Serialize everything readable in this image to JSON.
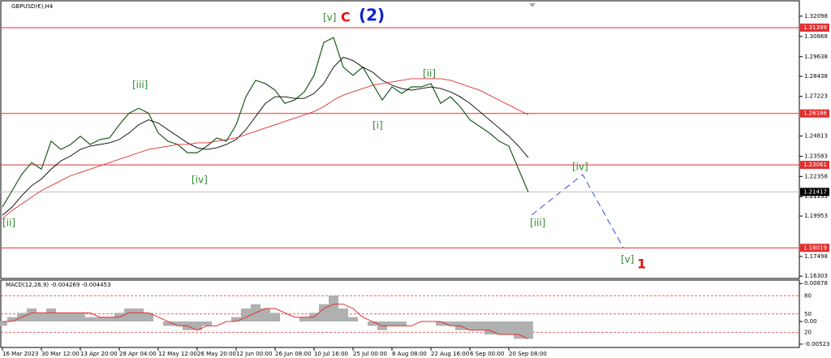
{
  "chart_data": {
    "type": "line",
    "title": "GBPUSD(€),H4",
    "categories": [
      "16 Mar 2023",
      null,
      null,
      null,
      "30 Mar 12:00",
      null,
      null,
      null,
      "13 Apr 20:00",
      null,
      null,
      null,
      "28 Apr 04:00",
      null,
      null,
      null,
      "12 May 12:00",
      null,
      null,
      null,
      "26 May 20:00",
      null,
      null,
      null,
      "12 Jun 00:00",
      null,
      null,
      null,
      "26 Jun 08:00",
      null,
      null,
      null,
      "10 Jul 16:00",
      null,
      null,
      null,
      "25 Jul 00:00",
      null,
      null,
      null,
      "8 Aug 08:00",
      null,
      null,
      null,
      "22 Aug 16:00",
      null,
      null,
      null,
      "6 Sep 00:00",
      null,
      null,
      null,
      "20 Sep 08:00",
      null,
      null
    ],
    "series": [
      {
        "color": "#1a5c1a",
        "values": [
          1.205,
          1.215,
          1.225,
          1.232,
          1.228,
          1.245,
          1.24,
          1.243,
          1.248,
          1.243,
          1.246,
          1.247,
          1.255,
          1.262,
          1.265,
          1.262,
          1.25,
          1.245,
          1.243,
          1.238,
          1.238,
          1.242,
          1.247,
          1.245,
          1.255,
          1.272,
          1.282,
          1.28,
          1.276,
          1.268,
          1.27,
          1.275,
          1.285,
          1.305,
          1.308,
          1.29,
          1.285,
          1.29,
          1.28,
          1.27,
          1.278,
          1.274,
          1.278,
          1.278,
          1.28,
          1.268,
          1.272,
          1.266,
          1.258,
          1.254,
          1.25,
          1.245,
          1.242,
          1.228,
          1.214
        ]
      },
      {
        "color": "#000000",
        "values": [
          1.2,
          1.205,
          1.212,
          1.218,
          1.222,
          1.228,
          1.233,
          1.236,
          1.24,
          1.242,
          1.243,
          1.244,
          1.246,
          1.25,
          1.255,
          1.258,
          1.256,
          1.252,
          1.248,
          1.244,
          1.241,
          1.24,
          1.241,
          1.243,
          1.246,
          1.252,
          1.26,
          1.268,
          1.272,
          1.272,
          1.271,
          1.271,
          1.274,
          1.28,
          1.29,
          1.296,
          1.294,
          1.29,
          1.287,
          1.282,
          1.279,
          1.277,
          1.276,
          1.277,
          1.278,
          1.277,
          1.275,
          1.272,
          1.268,
          1.263,
          1.258,
          1.253,
          1.248,
          1.242,
          1.235
        ]
      },
      {
        "color": "#e03030",
        "values": [
          1.198,
          1.203,
          1.207,
          1.211,
          1.215,
          1.218,
          1.221,
          1.224,
          1.226,
          1.228,
          1.23,
          1.232,
          1.234,
          1.236,
          1.238,
          1.24,
          1.241,
          1.242,
          1.243,
          1.243,
          1.244,
          1.244,
          1.245,
          1.246,
          1.247,
          1.249,
          1.251,
          1.253,
          1.255,
          1.257,
          1.259,
          1.261,
          1.263,
          1.266,
          1.27,
          1.273,
          1.275,
          1.277,
          1.279,
          1.28,
          1.281,
          1.282,
          1.283,
          1.283,
          1.283,
          1.283,
          1.282,
          1.28,
          1.278,
          1.276,
          1.273,
          1.27,
          1.267,
          1.264,
          1.261
        ]
      }
    ],
    "ylim": [
      1.1616,
      1.3303
    ],
    "yticks": [
      1.32098,
      1.30868,
      1.29638,
      1.28438,
      1.27223,
      1.24813,
      1.23583,
      1.22358,
      1.21133,
      1.19953,
      1.17498,
      1.16303
    ],
    "levels": [
      {
        "value": 1.31399,
        "color": "#e03030"
      },
      {
        "value": 1.26186,
        "color": "#e03030"
      },
      {
        "value": 1.23061,
        "color": "#e03030"
      },
      {
        "value": 1.18019,
        "color": "#e03030"
      },
      {
        "value": 1.21417,
        "color": "#c0c0c0"
      }
    ],
    "annotations": [
      {
        "text": "[ii]",
        "color": "#2e8b2e"
      },
      {
        "text": "[iii]",
        "color": "#2e8b2e"
      },
      {
        "text": "[iv]",
        "color": "#2e8b2e"
      },
      {
        "text": "[v]",
        "color": "#2e8b2e"
      },
      {
        "text": "C",
        "color": "#e01010"
      },
      {
        "text": "(2)",
        "color": "#1020d0"
      },
      {
        "text": "[i]",
        "color": "#2e8b2e"
      },
      {
        "text": "[ii]",
        "color": "#2e8b2e"
      },
      {
        "text": "[iii]",
        "color": "#2e8b2e"
      },
      {
        "text": "[iv]",
        "color": "#2e8b2e"
      },
      {
        "text": "[v]",
        "color": "#2e8b2e"
      },
      {
        "text": "1",
        "color": "#e01010"
      }
    ],
    "macd": {
      "title": "MACD(12,26,9) -0.004269 -0.004453",
      "histogram": {
        "color": "#b0b0b0",
        "values": [
          -0.001,
          0.001,
          0.002,
          0.003,
          0.002,
          0.003,
          0.002,
          0.002,
          0.002,
          0.001,
          0.001,
          0.001,
          0.002,
          0.003,
          0.003,
          0.002,
          0.0,
          -0.001,
          -0.001,
          -0.002,
          -0.002,
          -0.001,
          0.0,
          0.0,
          0.001,
          0.003,
          0.004,
          0.003,
          0.002,
          0.0,
          0.0,
          0.001,
          0.002,
          0.004,
          0.006,
          0.003,
          0.001,
          0.0,
          -0.001,
          -0.002,
          -0.001,
          -0.001,
          0.0,
          0.0,
          0.0,
          -0.001,
          -0.001,
          -0.002,
          -0.002,
          -0.002,
          -0.003,
          -0.003,
          -0.003,
          -0.004,
          -0.004
        ]
      },
      "signal": {
        "color": "#e03030",
        "values": [
          0.0,
          0.0,
          0.001,
          0.002,
          0.002,
          0.002,
          0.002,
          0.002,
          0.002,
          0.002,
          0.001,
          0.001,
          0.001,
          0.002,
          0.002,
          0.002,
          0.001,
          0.0,
          -0.001,
          -0.001,
          -0.002,
          -0.001,
          -0.001,
          0.0,
          0.0,
          0.001,
          0.002,
          0.003,
          0.003,
          0.002,
          0.001,
          0.001,
          0.001,
          0.003,
          0.004,
          0.004,
          0.003,
          0.001,
          0.0,
          -0.001,
          -0.001,
          -0.001,
          -0.001,
          0.0,
          0.0,
          0.0,
          -0.001,
          -0.001,
          -0.002,
          -0.002,
          -0.002,
          -0.003,
          -0.003,
          -0.003,
          -0.004
        ]
      },
      "ylim": [
        -0.006,
        0.0092
      ],
      "yticks": [
        0.00878,
        {
          "value": 0,
          "label": "0.00"
        },
        -0.00523
      ],
      "y2lim": [
        -5,
        103
      ],
      "y2ticks": [
        80,
        50,
        20
      ]
    }
  }
}
